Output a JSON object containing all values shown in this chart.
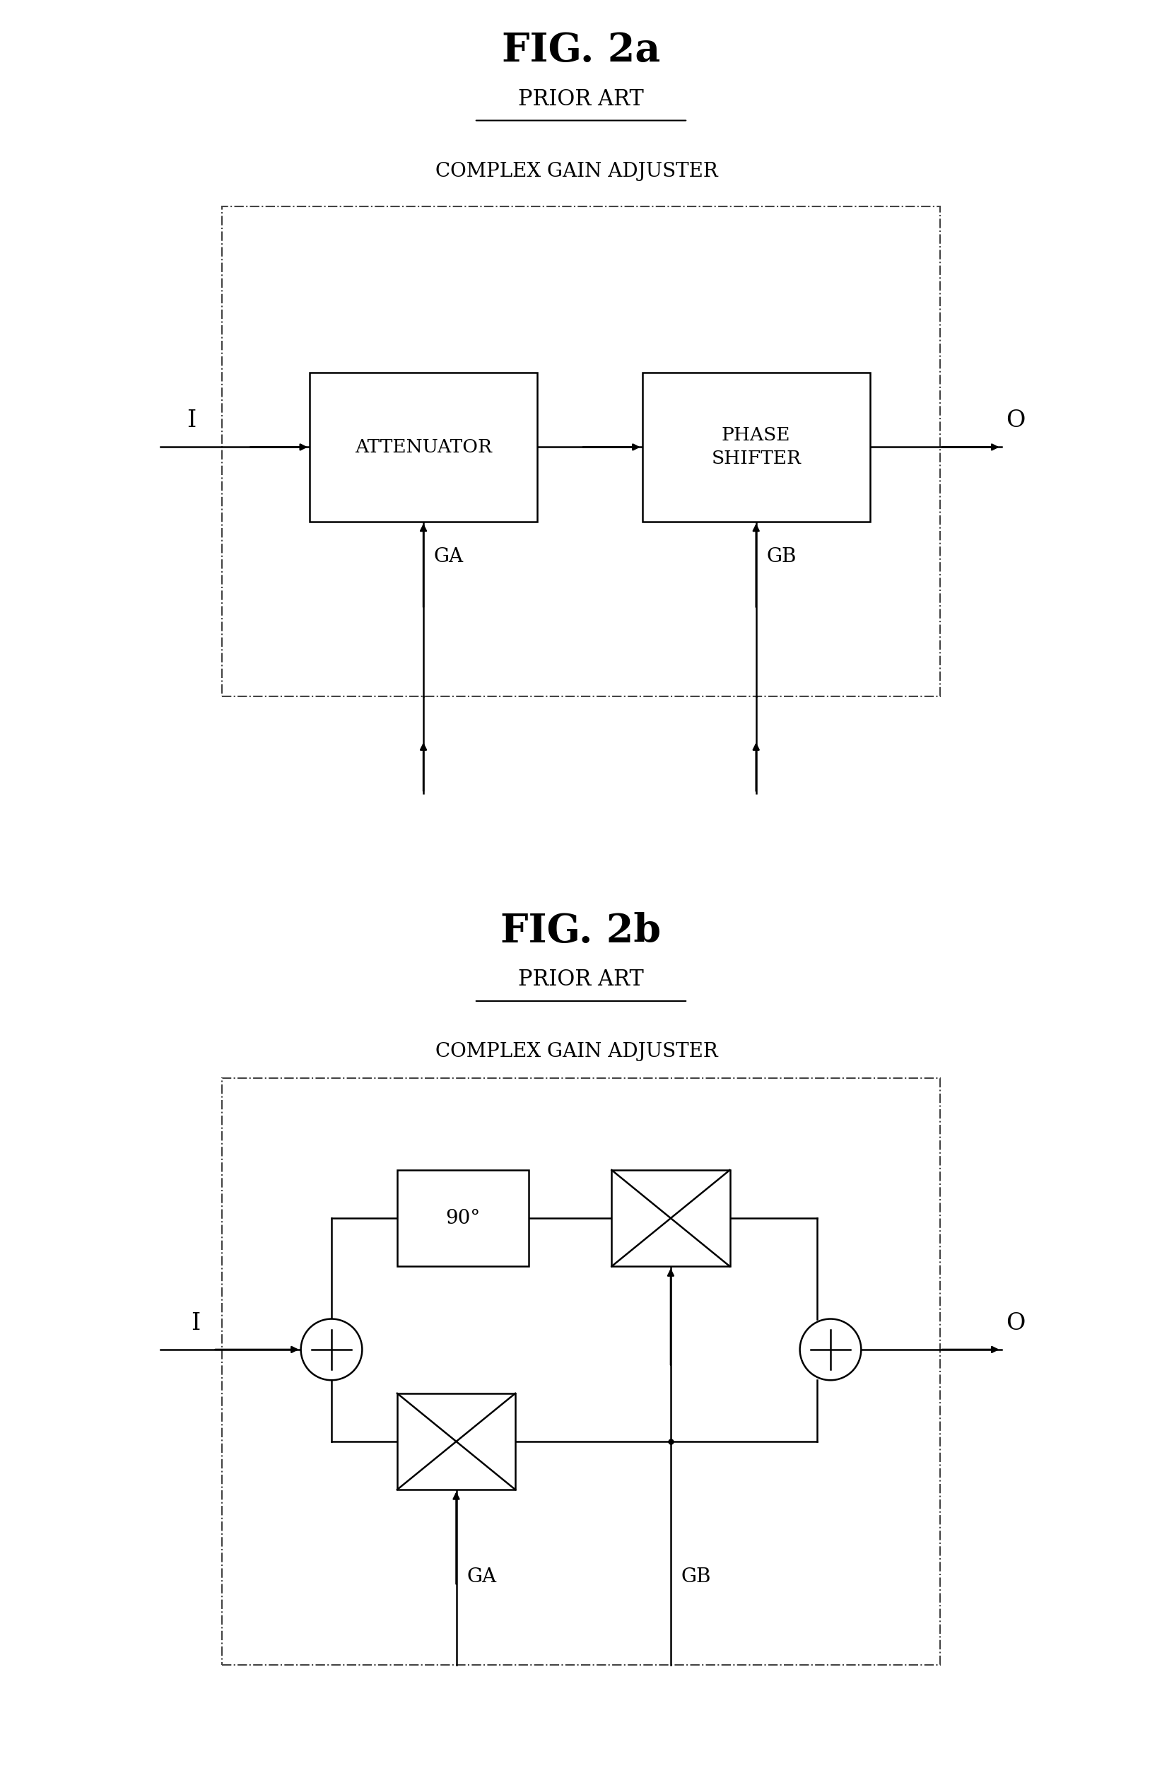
{
  "fig_title_a": "FIG. 2a",
  "fig_title_b": "FIG. 2b",
  "prior_art": "PRIOR ART",
  "complex_gain": "COMPLEX GAIN ADJUSTER",
  "attenuator_label": "ATTENUATOR",
  "phase_shifter_label": "PHASE\nSHIFTER",
  "degree_label": "90°",
  "ga_label": "GA",
  "gb_label": "GB",
  "input_label": "I",
  "output_label": "O",
  "bg_color": "#ffffff",
  "text_color": "#000000"
}
